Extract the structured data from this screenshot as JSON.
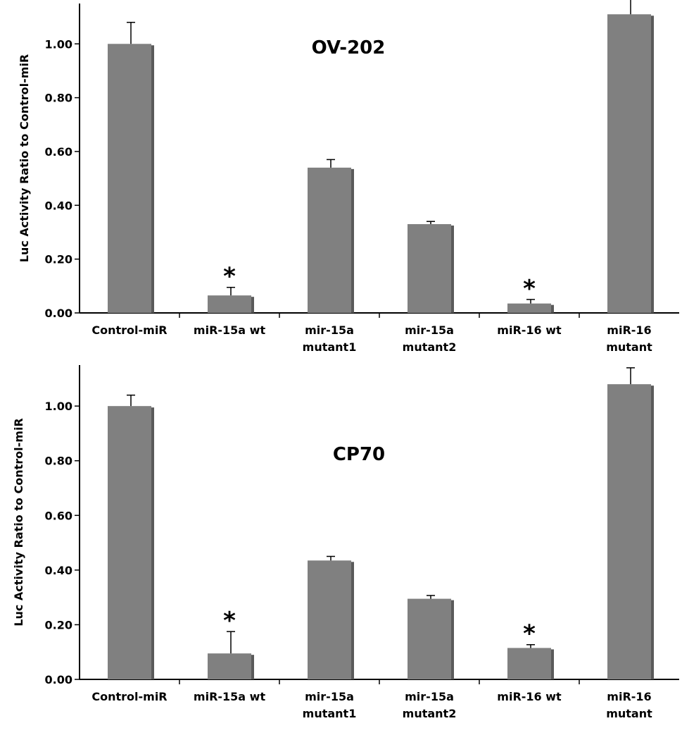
{
  "chart_data": [
    {
      "type": "bar",
      "title": "OV-202",
      "xlabel": "",
      "ylabel": "Luc Activity Ratio to Control-miR",
      "ylim": [
        0,
        1.15
      ],
      "yticks": [
        "0.00",
        "0.20",
        "0.40",
        "0.60",
        "0.80",
        "1.00"
      ],
      "categories": [
        [
          "Control-miR"
        ],
        [
          "miR-15a wt"
        ],
        [
          "mir-15a",
          "mutant1"
        ],
        [
          "mir-15a",
          "mutant2"
        ],
        [
          "miR-16 wt"
        ],
        [
          "miR-16",
          "mutant"
        ]
      ],
      "values": [
        1.0,
        0.065,
        0.54,
        0.33,
        0.035,
        1.11
      ],
      "errors": [
        0.08,
        0.03,
        0.03,
        0.01,
        0.015,
        0.06
      ],
      "significance": [
        "",
        "*",
        "",
        "",
        "*",
        ""
      ]
    },
    {
      "type": "bar",
      "title": "CP70",
      "xlabel": "",
      "ylabel": "Luc Activity Ratio to Control-miR",
      "ylim": [
        0,
        1.15
      ],
      "yticks": [
        "0.00",
        "0.20",
        "0.40",
        "0.60",
        "0.80",
        "1.00"
      ],
      "categories": [
        [
          "Control-miR"
        ],
        [
          "miR-15a wt"
        ],
        [
          "mir-15a",
          "mutant1"
        ],
        [
          "mir-15a",
          "mutant2"
        ],
        [
          "miR-16 wt"
        ],
        [
          "miR-16",
          "mutant"
        ]
      ],
      "values": [
        1.0,
        0.095,
        0.435,
        0.295,
        0.115,
        1.08
      ],
      "errors": [
        0.04,
        0.08,
        0.015,
        0.012,
        0.012,
        0.06
      ],
      "significance": [
        "",
        "*",
        "",
        "",
        "*",
        ""
      ]
    }
  ]
}
